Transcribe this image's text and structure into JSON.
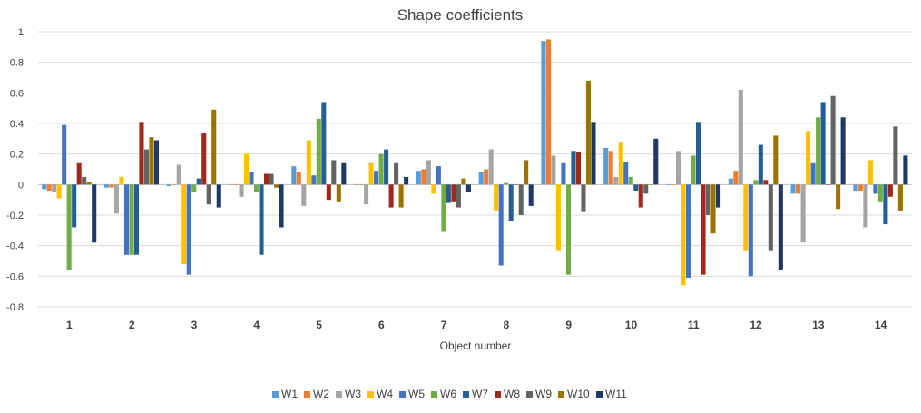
{
  "chart_data": {
    "type": "bar",
    "title": "Shape coefficients",
    "xlabel": "Object number",
    "ylabel": "",
    "ylim": [
      -0.8,
      1.0
    ],
    "yticks": [
      1,
      0.8,
      0.6,
      0.4,
      0.2,
      0,
      -0.2,
      -0.4,
      -0.6,
      -0.8
    ],
    "grid": true,
    "legend_position": "bottom",
    "categories": [
      "1",
      "2",
      "3",
      "4",
      "5",
      "6",
      "7",
      "8",
      "9",
      "10",
      "11",
      "12",
      "13",
      "14"
    ],
    "series": [
      {
        "name": "W1",
        "color": "#5B9BD5",
        "values": [
          -0.03,
          -0.02,
          -0.01,
          0.0,
          0.12,
          0.0,
          0.09,
          0.08,
          0.94,
          0.24,
          0.0,
          0.04,
          -0.06,
          -0.04
        ]
      },
      {
        "name": "W2",
        "color": "#ED7D31",
        "values": [
          -0.04,
          -0.02,
          0.0,
          0.0,
          0.08,
          0.0,
          0.1,
          0.1,
          0.95,
          0.22,
          0.0,
          0.09,
          -0.06,
          -0.04
        ]
      },
      {
        "name": "W3",
        "color": "#A5A5A5",
        "values": [
          -0.05,
          -0.19,
          0.13,
          -0.08,
          -0.14,
          -0.13,
          0.16,
          0.23,
          0.19,
          0.05,
          0.22,
          0.62,
          -0.38,
          -0.28
        ]
      },
      {
        "name": "W4",
        "color": "#FFC000",
        "values": [
          -0.09,
          0.05,
          -0.52,
          0.2,
          0.29,
          0.14,
          -0.06,
          -0.17,
          -0.43,
          0.28,
          -0.66,
          -0.43,
          0.35,
          0.16
        ]
      },
      {
        "name": "W5",
        "color": "#4472C4",
        "values": [
          0.39,
          -0.46,
          -0.59,
          0.08,
          0.06,
          0.09,
          0.12,
          -0.53,
          0.14,
          0.15,
          -0.61,
          -0.6,
          0.14,
          -0.06
        ]
      },
      {
        "name": "W6",
        "color": "#70AD47",
        "values": [
          -0.56,
          -0.46,
          -0.05,
          -0.05,
          0.43,
          0.2,
          -0.31,
          0.01,
          -0.59,
          0.05,
          0.19,
          0.03,
          0.44,
          -0.11
        ]
      },
      {
        "name": "W7",
        "color": "#255E91",
        "values": [
          -0.28,
          -0.46,
          0.04,
          -0.46,
          0.54,
          0.23,
          -0.12,
          -0.24,
          0.22,
          -0.04,
          0.41,
          0.26,
          0.54,
          -0.26
        ]
      },
      {
        "name": "W8",
        "color": "#9E2A1E",
        "values": [
          0.14,
          0.41,
          0.34,
          0.07,
          -0.1,
          -0.15,
          -0.11,
          0.0,
          0.21,
          -0.15,
          -0.59,
          0.03,
          0.0,
          -0.08
        ]
      },
      {
        "name": "W9",
        "color": "#636363",
        "values": [
          0.05,
          0.23,
          -0.13,
          0.07,
          0.16,
          0.14,
          -0.15,
          -0.2,
          -0.18,
          -0.06,
          -0.2,
          -0.43,
          0.58,
          0.38
        ]
      },
      {
        "name": "W10",
        "color": "#997300",
        "values": [
          0.02,
          0.31,
          0.49,
          -0.02,
          -0.11,
          -0.15,
          0.04,
          0.16,
          0.68,
          0.0,
          -0.32,
          0.32,
          -0.16,
          -0.17
        ]
      },
      {
        "name": "W11",
        "color": "#1F3864",
        "values": [
          -0.38,
          0.29,
          -0.15,
          -0.28,
          0.14,
          0.05,
          -0.05,
          -0.14,
          0.41,
          0.3,
          -0.15,
          -0.56,
          0.44,
          0.19
        ]
      }
    ]
  }
}
